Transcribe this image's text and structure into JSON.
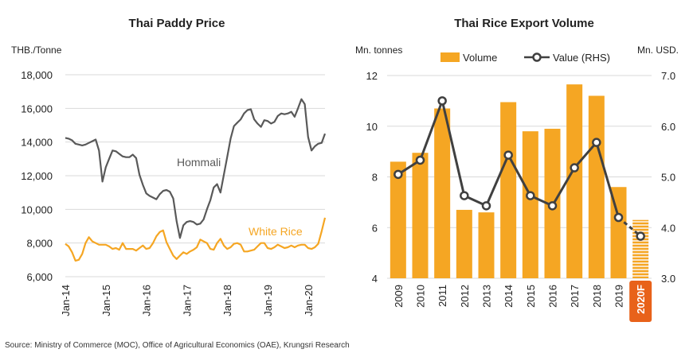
{
  "source": "Source: Ministry of Commerce (MOC), Office of Agricultural Economics (OAE), Krungsri Research",
  "colors": {
    "hommali": "#595959",
    "white_rice": "#F5A623",
    "volume_bar": "#F5A623",
    "value_line": "#404040",
    "forecast_box": "#E8621A",
    "grid": "#d9d9d9"
  },
  "chart_data": [
    {
      "type": "line",
      "title": "Thai Paddy Price",
      "ylabel": "THB./Tonne",
      "ylim": [
        6000,
        18000
      ],
      "yticks": [
        "6,000",
        "8,000",
        "10,000",
        "12,000",
        "14,000",
        "16,000",
        "18,000"
      ],
      "yticks_values": [
        6000,
        8000,
        10000,
        12000,
        14000,
        16000,
        18000
      ],
      "xticks": [
        "Jan-14",
        "Jan-15",
        "Jan-16",
        "Jan-17",
        "Jan-18",
        "Jan-19",
        "Jan-20"
      ],
      "grid": true,
      "series": [
        {
          "name": "Hommali",
          "start": "Jan-14",
          "frequency": "monthly",
          "values": [
            14250,
            14200,
            14100,
            13900,
            13850,
            13800,
            13850,
            13950,
            14050,
            14150,
            13500,
            11650,
            12500,
            13000,
            13500,
            13450,
            13300,
            13150,
            13100,
            13100,
            13250,
            13050,
            12050,
            11450,
            10950,
            10800,
            10700,
            10600,
            10900,
            11100,
            11150,
            11050,
            10650,
            9300,
            8300,
            9050,
            9250,
            9300,
            9250,
            9100,
            9150,
            9400,
            10000,
            10550,
            11300,
            11500,
            11000,
            12050,
            13100,
            14200,
            14950,
            15150,
            15350,
            15700,
            15900,
            15950,
            15350,
            15100,
            14900,
            15300,
            15250,
            15100,
            15200,
            15550,
            15700,
            15650,
            15700,
            15800,
            15500,
            16000,
            16550,
            16250,
            14300,
            13500,
            13750,
            13900,
            13950,
            14500
          ]
        },
        {
          "name": "White Rice",
          "start": "Jan-14",
          "frequency": "monthly",
          "values": [
            7950,
            7800,
            7450,
            6950,
            7000,
            7350,
            8000,
            8350,
            8100,
            8000,
            7900,
            7900,
            7900,
            7800,
            7650,
            7700,
            7600,
            8000,
            7650,
            7650,
            7650,
            7550,
            7700,
            7850,
            7650,
            7700,
            8000,
            8400,
            8650,
            8750,
            8050,
            7650,
            7250,
            7050,
            7250,
            7450,
            7350,
            7500,
            7600,
            7750,
            8200,
            8100,
            8000,
            7650,
            7600,
            8000,
            8250,
            7850,
            7650,
            7750,
            7950,
            8000,
            7900,
            7500,
            7500,
            7550,
            7600,
            7800,
            8000,
            8000,
            7700,
            7650,
            7750,
            7900,
            7800,
            7700,
            7750,
            7850,
            7750,
            7850,
            7900,
            7900,
            7700,
            7650,
            7750,
            7950,
            8700,
            9500
          ]
        }
      ]
    },
    {
      "type": "bar",
      "title": "Thai Rice Export Volume",
      "ylabel": "Mn. tonnes",
      "y2label": "Mn. USD.",
      "ylim": [
        4,
        12
      ],
      "y2lim": [
        3.0,
        7.0
      ],
      "yticks": [
        "4",
        "6",
        "8",
        "10",
        "12"
      ],
      "yticks_values": [
        4,
        6,
        8,
        10,
        12
      ],
      "y2ticks": [
        "3.0",
        "4.0",
        "5.0",
        "6.0",
        "7.0"
      ],
      "y2ticks_values": [
        3.0,
        4.0,
        5.0,
        6.0,
        7.0
      ],
      "legend_position": "top",
      "grid": true,
      "categories": [
        "2009",
        "2010",
        "2011",
        "2012",
        "2013",
        "2014",
        "2015",
        "2016",
        "2017",
        "2018",
        "2019",
        "2020F"
      ],
      "series": [
        {
          "name": "Volume",
          "type": "bar",
          "axis": "left",
          "values": [
            8.6,
            8.95,
            10.7,
            6.7,
            6.6,
            10.95,
            9.8,
            9.9,
            11.65,
            11.2,
            7.6,
            6.3
          ]
        },
        {
          "name": "Value (RHS)",
          "type": "line",
          "axis": "right",
          "values": [
            5.05,
            5.33,
            6.5,
            4.63,
            4.43,
            5.43,
            4.63,
            4.43,
            5.18,
            5.68,
            4.2,
            3.83
          ]
        }
      ]
    }
  ]
}
